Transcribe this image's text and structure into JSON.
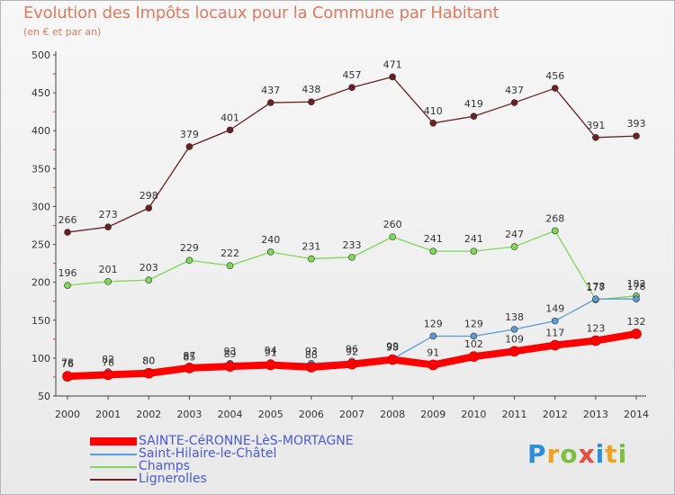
{
  "chart_data": {
    "type": "line",
    "title": "Evolution des Impôts locaux pour la Commune par Habitant",
    "subtitle": "(en € et par an)",
    "x": [
      "2000",
      "2001",
      "2002",
      "2003",
      "2004",
      "2005",
      "2006",
      "2007",
      "2008",
      "2009",
      "2010",
      "2011",
      "2012",
      "2013",
      "2014"
    ],
    "ylim": [
      50,
      500
    ],
    "yticks": [
      50,
      100,
      150,
      200,
      250,
      300,
      350,
      400,
      450,
      500
    ],
    "grid": false,
    "legend_position": "bottom-left",
    "series": [
      {
        "name": "SAINTE-CéRONNE-LèS-MORTAGNE",
        "color": "#ff0000",
        "values": [
          76,
          78,
          80,
          87,
          89,
          91,
          88,
          92,
          98,
          91,
          102,
          109,
          117,
          123,
          132
        ]
      },
      {
        "name": "Saint-Hilaire-le-Châtel",
        "color": "#5b9bd5",
        "values": [
          78,
          82,
          80,
          85,
          93,
          94,
          93,
          96,
          99,
          129,
          129,
          138,
          149,
          178,
          178
        ]
      },
      {
        "name": "Champs",
        "color": "#7ed957",
        "values": [
          196,
          201,
          203,
          229,
          222,
          240,
          231,
          233,
          260,
          241,
          241,
          247,
          268,
          177,
          182
        ]
      },
      {
        "name": "Lignerolles",
        "color": "#6b1f1f",
        "values": [
          266,
          273,
          298,
          379,
          401,
          437,
          438,
          457,
          471,
          410,
          419,
          437,
          456,
          391,
          393
        ]
      }
    ]
  },
  "logo": {
    "p": "P",
    "r": "r",
    "o": "o",
    "x": "x",
    "i": "i",
    "t": "t",
    "i2": "i"
  }
}
